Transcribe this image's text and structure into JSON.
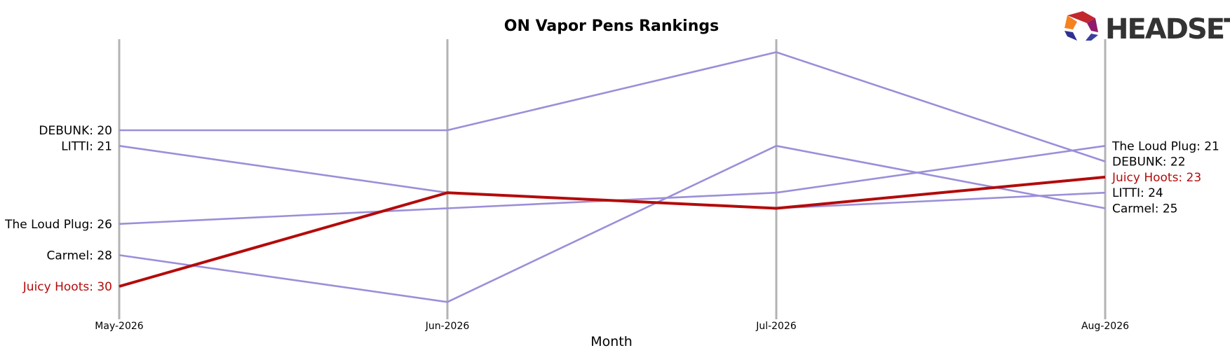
{
  "chart_data": {
    "type": "line",
    "title": "ON Vapor Pens Rankings",
    "xlabel": "Month",
    "ylabel": "",
    "categories": [
      "May-2026",
      "Jun-2026",
      "Jul-2026",
      "Aug-2026"
    ],
    "y_inverted": true,
    "ylim": [
      38,
      15
    ],
    "grid": false,
    "legend": "none",
    "series": [
      {
        "name": "DEBUNK",
        "values": [
          20,
          20,
          15,
          22
        ],
        "color": "#9b8fd9",
        "highlight": false
      },
      {
        "name": "LITTI",
        "values": [
          21,
          24,
          25,
          24
        ],
        "color": "#9b8fd9",
        "highlight": false
      },
      {
        "name": "The Loud Plug",
        "values": [
          26,
          25,
          24,
          21
        ],
        "color": "#9b8fd9",
        "highlight": false
      },
      {
        "name": "Carmel",
        "values": [
          28,
          31,
          21,
          25
        ],
        "color": "#9b8fd9",
        "highlight": false
      },
      {
        "name": "Juicy Hoots",
        "values": [
          30,
          24,
          25,
          23
        ],
        "color": "#b30b0b",
        "highlight": true
      }
    ],
    "start_labels": [
      "DEBUNK: 20",
      "LITTI: 21",
      "The Loud Plug: 26",
      "Carmel: 28",
      "Juicy Hoots: 30"
    ],
    "end_labels": [
      "The Loud Plug: 21",
      "DEBUNK: 22",
      "Juicy Hoots: 23",
      "LITTI: 24",
      "Carmel: 25"
    ]
  },
  "logo": {
    "text": "HEADSET"
  },
  "colors": {
    "line": "#9b8fd9",
    "highlight": "#b30b0b",
    "axis": "#b3b3b3",
    "text": "#000000"
  }
}
